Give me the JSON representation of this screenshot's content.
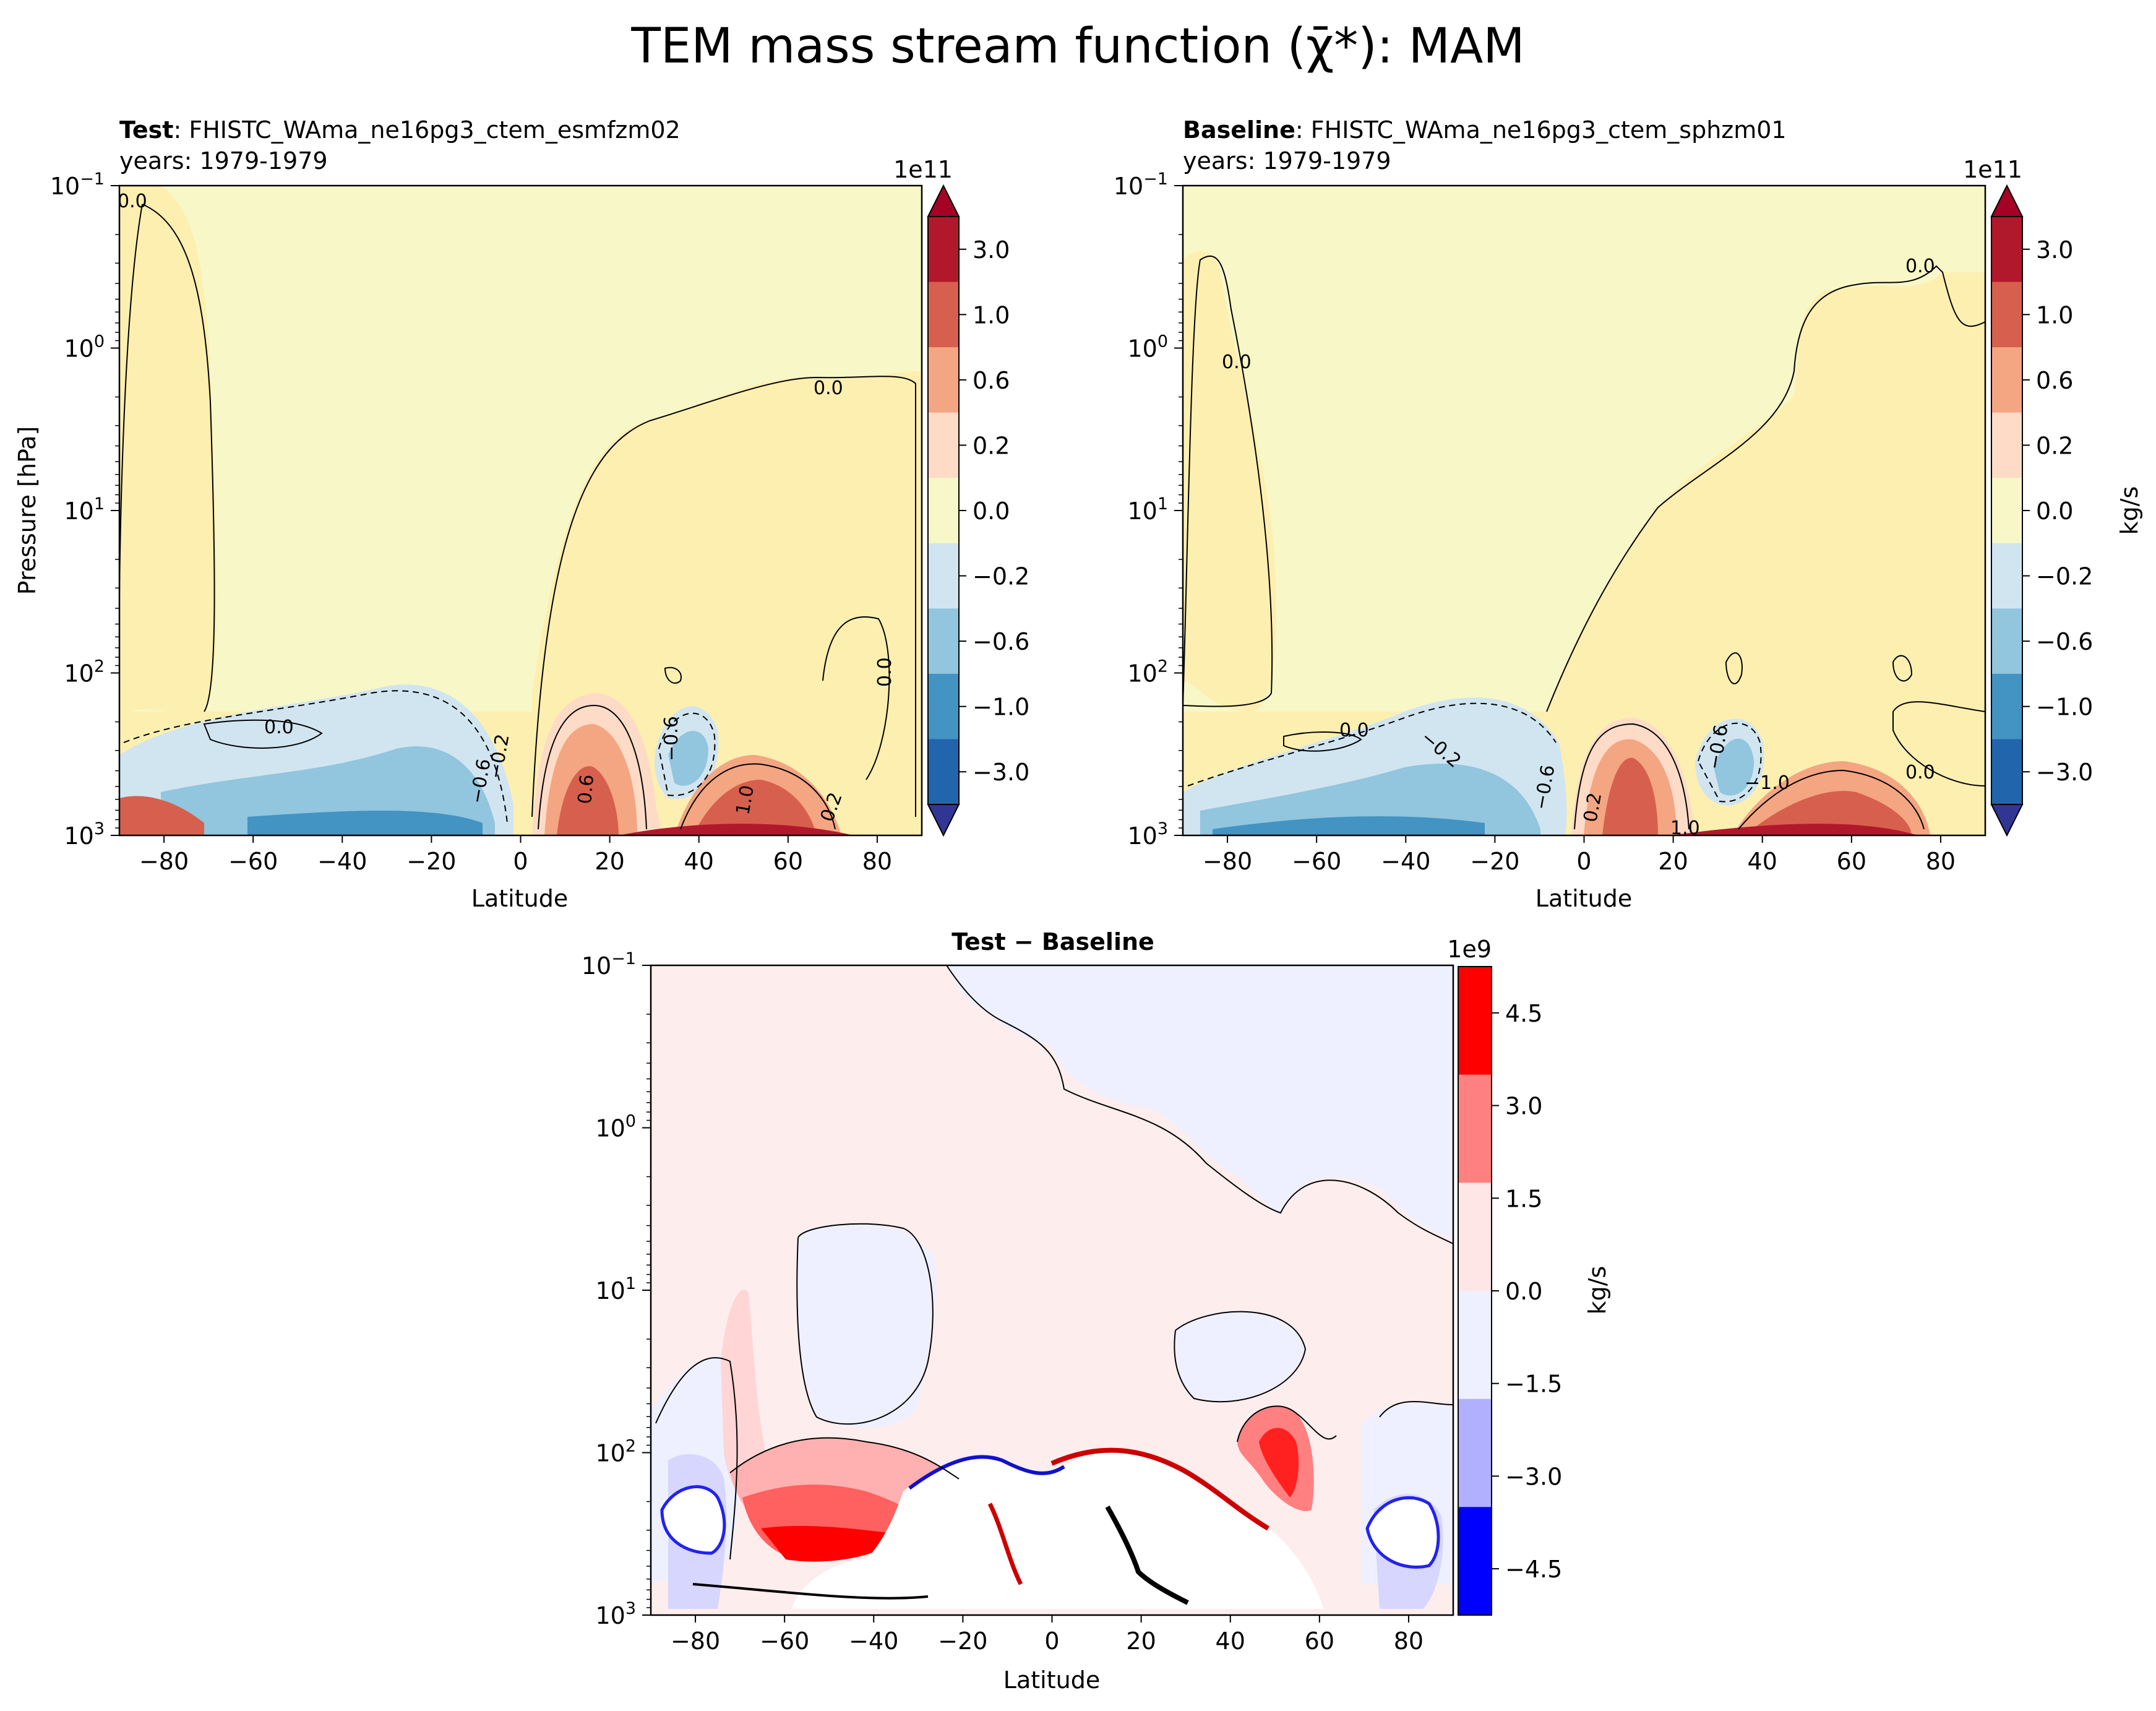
{
  "figure": {
    "suptitle": "TEM mass stream function (χ̄*): MAM"
  },
  "chart_data": [
    {
      "type": "contour",
      "panel": "test",
      "title_bold": "Test",
      "title_sep": ":",
      "title_case": "FHISTC_WAma_ne16pg3_ctem_esmfzm02",
      "title_years": "years: 1979-1979",
      "xlabel": "Latitude",
      "ylabel": "Pressure [hPa]",
      "xlim": [
        -90,
        90
      ],
      "xticks": [
        "−80",
        "−60",
        "−40",
        "−20",
        "0",
        "20",
        "40",
        "60",
        "80"
      ],
      "xtick_values": [
        -80,
        -60,
        -40,
        -20,
        0,
        20,
        40,
        60,
        80
      ],
      "ylim": [
        1000,
        0.1
      ],
      "yscale": "log",
      "yticks": [
        {
          "base": "10",
          "exp": "−1"
        },
        {
          "base": "10",
          "exp": "0"
        },
        {
          "base": "10",
          "exp": "1"
        },
        {
          "base": "10",
          "exp": "2"
        },
        {
          "base": "10",
          "exp": "3"
        }
      ],
      "contour_labels": [
        "0.0",
        "0.0",
        "0.0",
        "0.0",
        "−0.2",
        "−0.6",
        "0.6",
        "0.2",
        "−0.6",
        "1.0"
      ],
      "colorbar": {
        "scale_label": "1e11",
        "label": "",
        "ticks": [
          "3.0",
          "1.0",
          "0.6",
          "0.2",
          "0.0",
          "−0.2",
          "−0.6",
          "−1.0",
          "−3.0"
        ],
        "colors": [
          "#b2182b",
          "#d6604d",
          "#f4a582",
          "#fddbc7",
          "#f7f7c7",
          "#d1e5f0",
          "#92c5de",
          "#4393c3",
          "#2166ac"
        ]
      }
    },
    {
      "type": "contour",
      "panel": "baseline",
      "title_bold": "Baseline",
      "title_sep": ":",
      "title_case": "FHISTC_WAma_ne16pg3_ctem_sphzm01",
      "title_years": "years: 1979-1979",
      "xlabel": "Latitude",
      "ylabel": "",
      "xlim": [
        -90,
        90
      ],
      "xticks": [
        "−80",
        "−60",
        "−40",
        "−20",
        "0",
        "20",
        "40",
        "60",
        "80"
      ],
      "xtick_values": [
        -80,
        -60,
        -40,
        -20,
        0,
        20,
        40,
        60,
        80
      ],
      "ylim": [
        1000,
        0.1
      ],
      "yscale": "log",
      "yticks": [
        {
          "base": "10",
          "exp": "−1"
        },
        {
          "base": "10",
          "exp": "0"
        },
        {
          "base": "10",
          "exp": "1"
        },
        {
          "base": "10",
          "exp": "2"
        },
        {
          "base": "10",
          "exp": "3"
        }
      ],
      "contour_labels": [
        "0.0",
        "0.0",
        "0.0",
        "−0.2",
        "−0.6",
        "0.2",
        "−0.6",
        "−1.0",
        "0.0",
        "1.0"
      ],
      "colorbar": {
        "scale_label": "1e11",
        "label": "kg/s",
        "ticks": [
          "3.0",
          "1.0",
          "0.6",
          "0.2",
          "0.0",
          "−0.2",
          "−0.6",
          "−1.0",
          "−3.0"
        ]
      }
    },
    {
      "type": "contour",
      "panel": "difference",
      "title": "Test − Baseline",
      "xlabel": "Latitude",
      "ylabel": "",
      "xlim": [
        -90,
        90
      ],
      "xticks": [
        "−80",
        "−60",
        "−40",
        "−20",
        "0",
        "20",
        "40",
        "60",
        "80"
      ],
      "xtick_values": [
        -80,
        -60,
        -40,
        -20,
        0,
        20,
        40,
        60,
        80
      ],
      "ylim": [
        1000,
        0.1
      ],
      "yscale": "log",
      "yticks": [
        {
          "base": "10",
          "exp": "−1"
        },
        {
          "base": "10",
          "exp": "0"
        },
        {
          "base": "10",
          "exp": "1"
        },
        {
          "base": "10",
          "exp": "2"
        },
        {
          "base": "10",
          "exp": "3"
        }
      ],
      "colorbar": {
        "scale_label": "1e9",
        "label": "kg/s",
        "ticks": [
          "4.5",
          "3.0",
          "1.5",
          "0.0",
          "−1.5",
          "−3.0",
          "−4.5"
        ],
        "colors": [
          "#ff0000",
          "#ff8080",
          "#ffe6e6",
          "#eef0ff",
          "#b0b0ff",
          "#0000ff"
        ]
      }
    }
  ]
}
